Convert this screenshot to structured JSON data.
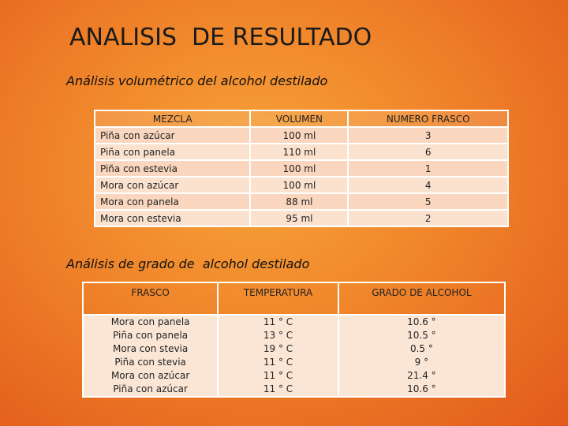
{
  "title": "ANALISIS  DE RESULTADO",
  "section1": {
    "title": "Análisis volumétrico del alcohol destilado",
    "table": {
      "headers": [
        "MEZCLA",
        "VOLUMEN",
        "NUMERO FRASCO"
      ],
      "rows": [
        [
          "Piña con azúcar",
          "100 ml",
          "3"
        ],
        [
          "Piña con panela",
          "110 ml",
          "6"
        ],
        [
          "Piña con estevia",
          "100 ml",
          "1"
        ],
        [
          "Mora con azúcar",
          "100 ml",
          "4"
        ],
        [
          "Mora con panela",
          "88 ml",
          "5"
        ],
        [
          "Mora con estevia",
          "95 ml",
          "2"
        ]
      ]
    }
  },
  "section2": {
    "title": "Análisis de grado de  alcohol destilado",
    "table": {
      "headers": [
        "FRASCO",
        "TEMPERATURA",
        "GRADO DE ALCOHOL"
      ],
      "rows": [
        [
          "Mora con panela",
          "11 ° C",
          "10.6 °"
        ],
        [
          "Piña con panela",
          "13 ° C",
          "10.5 °"
        ],
        [
          "Mora con stevia",
          "19 ° C",
          "0.5 °"
        ],
        [
          "Piña con stevia",
          "11 ° C",
          "9 °"
        ],
        [
          "Mora con azúcar",
          "11 ° C",
          "21.4 °"
        ],
        [
          "Piña con azúcar",
          "11 ° C",
          "10.6 °"
        ]
      ]
    }
  }
}
